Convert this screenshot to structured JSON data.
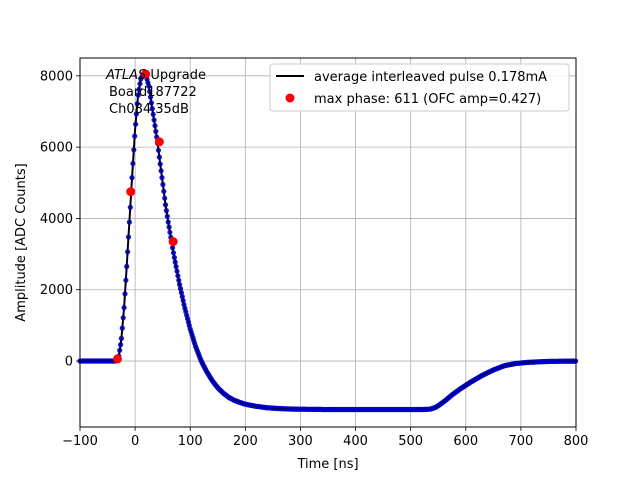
{
  "chart_data": {
    "type": "scatter",
    "xlabel": "Time [ns]",
    "ylabel": "Amplitude [ADC Counts]",
    "xlim": [
      -100,
      800
    ],
    "ylim": [
      -1850,
      8500
    ],
    "xticks": [
      -100,
      0,
      100,
      200,
      300,
      400,
      500,
      600,
      700,
      800
    ],
    "yticks": [
      0,
      2000,
      4000,
      6000,
      8000
    ],
    "grid": true,
    "legend_position": "top-right",
    "annotation": {
      "italic": "ATLAS",
      "line1_rest": " Upgrade",
      "line2": "Board187722",
      "line3": "Ch084 35dB"
    },
    "series": [
      {
        "name": "average interleaved pulse 0.178mA",
        "kind": "line",
        "color": "#000000",
        "x": [
          -100,
          -50,
          -35,
          -30,
          -25,
          -20,
          -15,
          -10,
          -5,
          0,
          5,
          10,
          15,
          20,
          25,
          30,
          40,
          45,
          50,
          55,
          60,
          70,
          80,
          90,
          100,
          110,
          120,
          130,
          140,
          150,
          160,
          170,
          180,
          190,
          200,
          220,
          240,
          260,
          280,
          300,
          350,
          400,
          450,
          500,
          520,
          535,
          545,
          555,
          565,
          575,
          590,
          610,
          630,
          650,
          670,
          690,
          710,
          740,
          770,
          800
        ],
        "y": [
          0,
          0,
          0,
          100,
          600,
          1500,
          2700,
          4000,
          5300,
          6500,
          7400,
          7900,
          8050,
          8000,
          7700,
          7200,
          6200,
          5600,
          5000,
          4400,
          3900,
          3000,
          2200,
          1500,
          900,
          400,
          0,
          -300,
          -550,
          -750,
          -900,
          -1020,
          -1100,
          -1160,
          -1210,
          -1270,
          -1310,
          -1330,
          -1345,
          -1350,
          -1360,
          -1360,
          -1360,
          -1360,
          -1360,
          -1350,
          -1300,
          -1200,
          -1080,
          -950,
          -780,
          -580,
          -400,
          -250,
          -130,
          -70,
          -40,
          -15,
          -5,
          0
        ],
        "marker_color": "#0000cc"
      },
      {
        "name": "max phase: 611 (OFC amp=0.427)",
        "kind": "points",
        "color": "#ff0000",
        "x": [
          -32,
          -8,
          19,
          44,
          69
        ],
        "y": [
          60,
          4750,
          8050,
          6150,
          3350
        ]
      }
    ]
  }
}
